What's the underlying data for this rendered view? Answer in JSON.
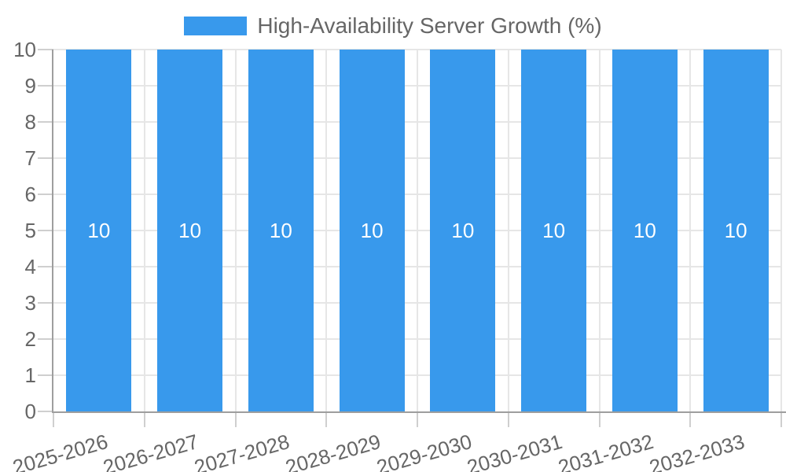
{
  "chart_data": {
    "type": "bar",
    "title": "",
    "legend": {
      "label": "High-Availability Server Growth (%)",
      "position": "top"
    },
    "categories": [
      "2025-2026",
      "2026-2027",
      "2027-2028",
      "2028-2029",
      "2029-2030",
      "2030-2031",
      "2031-2032",
      "2032-2033"
    ],
    "series": [
      {
        "name": "High-Availability Server Growth (%)",
        "values": [
          10,
          10,
          10,
          10,
          10,
          10,
          10,
          10
        ],
        "value_labels": [
          "10",
          "10",
          "10",
          "10",
          "10",
          "10",
          "10",
          "10"
        ]
      }
    ],
    "xlabel": "",
    "ylabel": "",
    "ylim": [
      0,
      10
    ],
    "y_ticks": [
      "0",
      "1",
      "2",
      "3",
      "4",
      "5",
      "6",
      "7",
      "8",
      "9",
      "10"
    ],
    "grid": true,
    "legend_position": "top-center",
    "colors": {
      "bar": "#3899EC",
      "bar_label_text": "#ffffff",
      "axis_line": "#9e9e9e",
      "tick_mark": "#cfcfcf",
      "gridline": "#e6e6e6",
      "tick_text": "#666666",
      "legend_text": "#666666",
      "background": "#ffffff"
    }
  }
}
